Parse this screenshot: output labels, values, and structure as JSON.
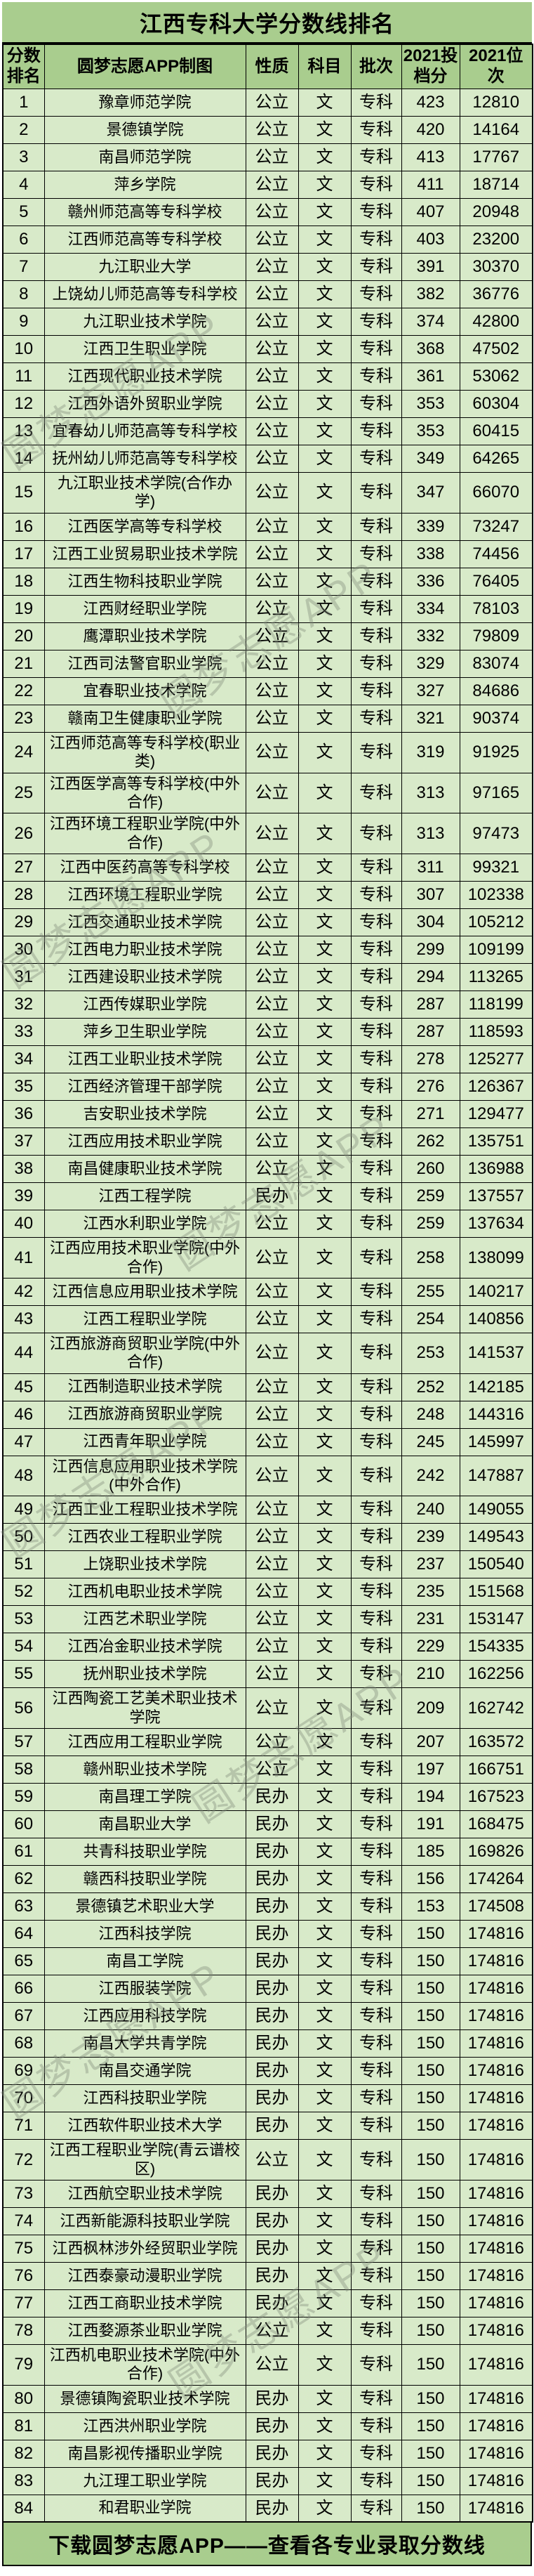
{
  "title": "江西专科大学分数线排名",
  "footer": "下载圆梦志愿APP——查看各专业录取分数线",
  "watermark": "圆梦志愿APP",
  "colors": {
    "band_green": "#a9cd8e",
    "row_green": "#d8eac9",
    "border": "#000000"
  },
  "columns": [
    "分数排名",
    "圆梦志愿APP制图",
    "性质",
    "科目",
    "批次",
    "2021投档分",
    "2021位次"
  ],
  "rows": [
    [
      1,
      "豫章师范学院",
      "公立",
      "文",
      "专科",
      423,
      12810
    ],
    [
      2,
      "景德镇学院",
      "公立",
      "文",
      "专科",
      420,
      14164
    ],
    [
      3,
      "南昌师范学院",
      "公立",
      "文",
      "专科",
      413,
      17767
    ],
    [
      4,
      "萍乡学院",
      "公立",
      "文",
      "专科",
      411,
      18714
    ],
    [
      5,
      "赣州师范高等专科学校",
      "公立",
      "文",
      "专科",
      407,
      20948
    ],
    [
      6,
      "江西师范高等专科学校",
      "公立",
      "文",
      "专科",
      403,
      23200
    ],
    [
      7,
      "九江职业大学",
      "公立",
      "文",
      "专科",
      391,
      30370
    ],
    [
      8,
      "上饶幼儿师范高等专科学校",
      "公立",
      "文",
      "专科",
      382,
      36776
    ],
    [
      9,
      "九江职业技术学院",
      "公立",
      "文",
      "专科",
      374,
      42800
    ],
    [
      10,
      "江西卫生职业学院",
      "公立",
      "文",
      "专科",
      368,
      47502
    ],
    [
      11,
      "江西现代职业技术学院",
      "公立",
      "文",
      "专科",
      361,
      53062
    ],
    [
      12,
      "江西外语外贸职业学院",
      "公立",
      "文",
      "专科",
      353,
      60304
    ],
    [
      13,
      "宜春幼儿师范高等专科学校",
      "公立",
      "文",
      "专科",
      353,
      60415
    ],
    [
      14,
      "抚州幼儿师范高等专科学校",
      "公立",
      "文",
      "专科",
      349,
      64265
    ],
    [
      15,
      "九江职业技术学院(合作办学)",
      "公立",
      "文",
      "专科",
      347,
      66070
    ],
    [
      16,
      "江西医学高等专科学校",
      "公立",
      "文",
      "专科",
      339,
      73247
    ],
    [
      17,
      "江西工业贸易职业技术学院",
      "公立",
      "文",
      "专科",
      338,
      74456
    ],
    [
      18,
      "江西生物科技职业学院",
      "公立",
      "文",
      "专科",
      336,
      76405
    ],
    [
      19,
      "江西财经职业学院",
      "公立",
      "文",
      "专科",
      334,
      78103
    ],
    [
      20,
      "鹰潭职业技术学院",
      "公立",
      "文",
      "专科",
      332,
      79809
    ],
    [
      21,
      "江西司法警官职业学院",
      "公立",
      "文",
      "专科",
      329,
      83074
    ],
    [
      22,
      "宜春职业技术学院",
      "公立",
      "文",
      "专科",
      327,
      84686
    ],
    [
      23,
      "赣南卫生健康职业学院",
      "公立",
      "文",
      "专科",
      321,
      90374
    ],
    [
      24,
      "江西师范高等专科学校(职业类)",
      "公立",
      "文",
      "专科",
      319,
      91925
    ],
    [
      25,
      "江西医学高等专科学校(中外合作)",
      "公立",
      "文",
      "专科",
      313,
      97165
    ],
    [
      26,
      "江西环境工程职业学院(中外合作)",
      "公立",
      "文",
      "专科",
      313,
      97473
    ],
    [
      27,
      "江西中医药高等专科学校",
      "公立",
      "文",
      "专科",
      311,
      99321
    ],
    [
      28,
      "江西环境工程职业学院",
      "公立",
      "文",
      "专科",
      307,
      102338
    ],
    [
      29,
      "江西交通职业技术学院",
      "公立",
      "文",
      "专科",
      304,
      105212
    ],
    [
      30,
      "江西电力职业技术学院",
      "公立",
      "文",
      "专科",
      299,
      109199
    ],
    [
      31,
      "江西建设职业技术学院",
      "公立",
      "文",
      "专科",
      294,
      113265
    ],
    [
      32,
      "江西传媒职业学院",
      "公立",
      "文",
      "专科",
      287,
      118199
    ],
    [
      33,
      "萍乡卫生职业学院",
      "公立",
      "文",
      "专科",
      287,
      118593
    ],
    [
      34,
      "江西工业职业技术学院",
      "公立",
      "文",
      "专科",
      278,
      125277
    ],
    [
      35,
      "江西经济管理干部学院",
      "公立",
      "文",
      "专科",
      276,
      126367
    ],
    [
      36,
      "吉安职业技术学院",
      "公立",
      "文",
      "专科",
      271,
      129477
    ],
    [
      37,
      "江西应用技术职业学院",
      "公立",
      "文",
      "专科",
      262,
      135751
    ],
    [
      38,
      "南昌健康职业技术学院",
      "公立",
      "文",
      "专科",
      260,
      136988
    ],
    [
      39,
      "江西工程学院",
      "民办",
      "文",
      "专科",
      259,
      137557
    ],
    [
      40,
      "江西水利职业学院",
      "公立",
      "文",
      "专科",
      259,
      137634
    ],
    [
      41,
      "江西应用技术职业学院(中外合作)",
      "公立",
      "文",
      "专科",
      258,
      138099
    ],
    [
      42,
      "江西信息应用职业技术学院",
      "公立",
      "文",
      "专科",
      255,
      140217
    ],
    [
      43,
      "江西工程职业学院",
      "公立",
      "文",
      "专科",
      254,
      140856
    ],
    [
      44,
      "江西旅游商贸职业学院(中外合作)",
      "公立",
      "文",
      "专科",
      253,
      141537
    ],
    [
      45,
      "江西制造职业技术学院",
      "公立",
      "文",
      "专科",
      252,
      142185
    ],
    [
      46,
      "江西旅游商贸职业学院",
      "公立",
      "文",
      "专科",
      248,
      144316
    ],
    [
      47,
      "江西青年职业学院",
      "公立",
      "文",
      "专科",
      245,
      145997
    ],
    [
      48,
      "江西信息应用职业技术学院(中外合作)",
      "公立",
      "文",
      "专科",
      242,
      147887
    ],
    [
      49,
      "江西工业工程职业技术学院",
      "公立",
      "文",
      "专科",
      240,
      149055
    ],
    [
      50,
      "江西农业工程职业学院",
      "公立",
      "文",
      "专科",
      239,
      149543
    ],
    [
      51,
      "上饶职业技术学院",
      "公立",
      "文",
      "专科",
      237,
      150540
    ],
    [
      52,
      "江西机电职业技术学院",
      "公立",
      "文",
      "专科",
      235,
      151568
    ],
    [
      53,
      "江西艺术职业学院",
      "公立",
      "文",
      "专科",
      231,
      153147
    ],
    [
      54,
      "江西冶金职业技术学院",
      "公立",
      "文",
      "专科",
      229,
      154335
    ],
    [
      55,
      "抚州职业技术学院",
      "公立",
      "文",
      "专科",
      210,
      162256
    ],
    [
      56,
      "江西陶瓷工艺美术职业技术学院",
      "公立",
      "文",
      "专科",
      209,
      162742
    ],
    [
      57,
      "江西应用工程职业学院",
      "公立",
      "文",
      "专科",
      207,
      163572
    ],
    [
      58,
      "赣州职业技术学院",
      "公立",
      "文",
      "专科",
      197,
      166751
    ],
    [
      59,
      "南昌理工学院",
      "民办",
      "文",
      "专科",
      194,
      167523
    ],
    [
      60,
      "南昌职业大学",
      "民办",
      "文",
      "专科",
      191,
      168475
    ],
    [
      61,
      "共青科技职业学院",
      "民办",
      "文",
      "专科",
      185,
      169826
    ],
    [
      62,
      "赣西科技职业学院",
      "民办",
      "文",
      "专科",
      156,
      174264
    ],
    [
      63,
      "景德镇艺术职业大学",
      "民办",
      "文",
      "专科",
      153,
      174508
    ],
    [
      64,
      "江西科技学院",
      "民办",
      "文",
      "专科",
      150,
      174816
    ],
    [
      65,
      "南昌工学院",
      "民办",
      "文",
      "专科",
      150,
      174816
    ],
    [
      66,
      "江西服装学院",
      "民办",
      "文",
      "专科",
      150,
      174816
    ],
    [
      67,
      "江西应用科技学院",
      "民办",
      "文",
      "专科",
      150,
      174816
    ],
    [
      68,
      "南昌大学共青学院",
      "民办",
      "文",
      "专科",
      150,
      174816
    ],
    [
      69,
      "南昌交通学院",
      "民办",
      "文",
      "专科",
      150,
      174816
    ],
    [
      70,
      "江西科技职业学院",
      "民办",
      "文",
      "专科",
      150,
      174816
    ],
    [
      71,
      "江西软件职业技术大学",
      "民办",
      "文",
      "专科",
      150,
      174816
    ],
    [
      72,
      "江西工程职业学院(青云谱校区)",
      "公立",
      "文",
      "专科",
      150,
      174816
    ],
    [
      73,
      "江西航空职业技术学院",
      "民办",
      "文",
      "专科",
      150,
      174816
    ],
    [
      74,
      "江西新能源科技职业学院",
      "民办",
      "文",
      "专科",
      150,
      174816
    ],
    [
      75,
      "江西枫林涉外经贸职业学院",
      "民办",
      "文",
      "专科",
      150,
      174816
    ],
    [
      76,
      "江西泰豪动漫职业学院",
      "民办",
      "文",
      "专科",
      150,
      174816
    ],
    [
      77,
      "江西工商职业技术学院",
      "民办",
      "文",
      "专科",
      150,
      174816
    ],
    [
      78,
      "江西婺源茶业职业学院",
      "公立",
      "文",
      "专科",
      150,
      174816
    ],
    [
      79,
      "江西机电职业技术学院(中外合作)",
      "公立",
      "文",
      "专科",
      150,
      174816
    ],
    [
      80,
      "景德镇陶瓷职业技术学院",
      "民办",
      "文",
      "专科",
      150,
      174816
    ],
    [
      81,
      "江西洪州职业学院",
      "民办",
      "文",
      "专科",
      150,
      174816
    ],
    [
      82,
      "南昌影视传播职业学院",
      "民办",
      "文",
      "专科",
      150,
      174816
    ],
    [
      83,
      "九江理工职业学院",
      "民办",
      "文",
      "专科",
      150,
      174816
    ],
    [
      84,
      "和君职业学院",
      "民办",
      "文",
      "专科",
      150,
      174816
    ]
  ]
}
